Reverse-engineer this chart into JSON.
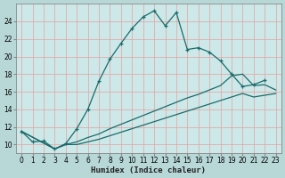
{
  "xlabel": "Humidex (Indice chaleur)",
  "bg_color": "#b8d8d8",
  "plot_bg_color": "#cce8e8",
  "grid_color": "#e8a0a0",
  "line_color": "#1a6b6b",
  "xlim": [
    -0.5,
    23.5
  ],
  "ylim": [
    9,
    26
  ],
  "x_ticks": [
    0,
    1,
    2,
    3,
    4,
    5,
    6,
    7,
    8,
    9,
    10,
    11,
    12,
    13,
    14,
    15,
    16,
    17,
    18,
    19,
    20,
    21,
    22,
    23
  ],
  "y_ticks": [
    10,
    12,
    14,
    16,
    18,
    20,
    22,
    24
  ],
  "main_x": [
    0,
    1,
    2,
    3,
    4,
    5,
    6,
    7,
    8,
    9,
    10,
    11,
    12,
    13,
    14,
    15,
    16,
    17,
    18,
    19,
    20,
    21,
    22
  ],
  "main_y": [
    11.5,
    10.3,
    10.4,
    9.5,
    10.1,
    11.8,
    14.0,
    17.2,
    19.7,
    21.5,
    23.2,
    24.5,
    25.2,
    23.5,
    25.0,
    20.8,
    21.0,
    20.5,
    19.5,
    18.0,
    16.6,
    16.8,
    17.3
  ],
  "line2_x": [
    0,
    3,
    4,
    5,
    6,
    7,
    8,
    9,
    10,
    11,
    12,
    13,
    14,
    15,
    16,
    17,
    18,
    19,
    20,
    21,
    22,
    23
  ],
  "line2_y": [
    11.5,
    9.5,
    10.0,
    10.3,
    10.8,
    11.2,
    11.8,
    12.3,
    12.8,
    13.3,
    13.8,
    14.3,
    14.8,
    15.3,
    15.7,
    16.2,
    16.7,
    17.8,
    18.0,
    16.7,
    16.8,
    16.2
  ],
  "line3_x": [
    0,
    3,
    4,
    5,
    6,
    7,
    8,
    9,
    10,
    11,
    12,
    13,
    14,
    15,
    16,
    17,
    18,
    19,
    20,
    21,
    22,
    23
  ],
  "line3_y": [
    11.5,
    9.5,
    10.0,
    10.0,
    10.3,
    10.6,
    11.0,
    11.4,
    11.8,
    12.2,
    12.6,
    13.0,
    13.4,
    13.8,
    14.2,
    14.6,
    15.0,
    15.4,
    15.8,
    15.4,
    15.6,
    15.8
  ],
  "xlabel_fontsize": 6.5,
  "tick_fontsize": 5.5,
  "linewidth": 0.9
}
